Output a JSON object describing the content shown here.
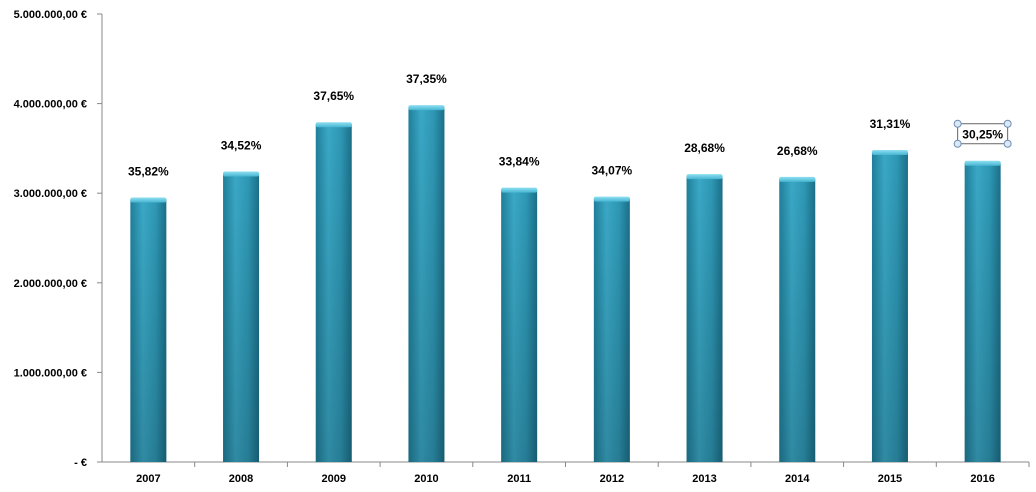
{
  "chart_data": {
    "type": "bar",
    "categories": [
      "2007",
      "2008",
      "2009",
      "2010",
      "2011",
      "2012",
      "2013",
      "2014",
      "2015",
      "2016"
    ],
    "values": [
      2930000,
      3220000,
      3770000,
      3960000,
      3040000,
      2940000,
      3190000,
      3160000,
      3460000,
      3340000
    ],
    "data_labels": [
      "35,82%",
      "34,52%",
      "37,65%",
      "37,35%",
      "33,84%",
      "34,07%",
      "28,68%",
      "26,68%",
      "31,31%",
      "30,25%"
    ],
    "ylim": [
      0,
      5000000
    ],
    "yticks": [
      0,
      1000000,
      2000000,
      3000000,
      4000000,
      5000000
    ],
    "ytick_labels": [
      "-  €",
      "1.000.000,00 €",
      "2.000.000,00 €",
      "3.000.000,00 €",
      "4.000.000,00 €",
      "5.000.000,00 €"
    ],
    "title": "",
    "xlabel": "",
    "ylabel": "",
    "grid": false,
    "legend": "none",
    "bar_color": "#2f9bb8",
    "selected_label_index": 9
  }
}
